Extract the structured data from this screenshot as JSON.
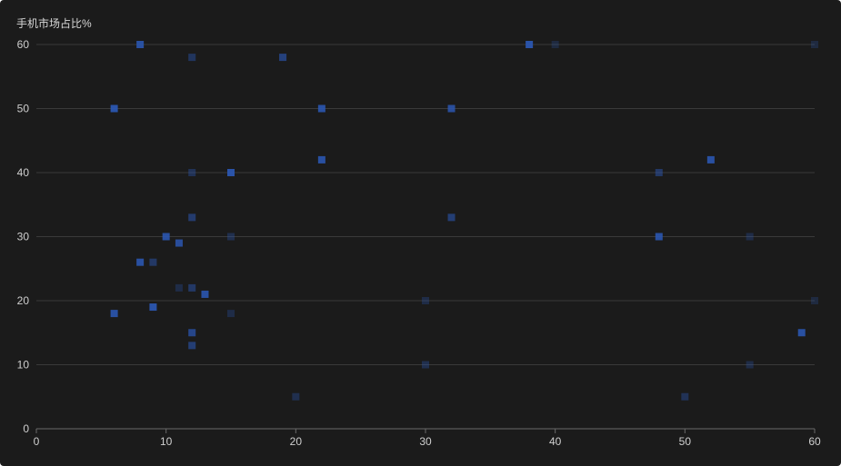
{
  "chart_data": {
    "type": "scatter",
    "title": "",
    "xlabel": "",
    "ylabel": "手机市场占比%",
    "xlim": [
      0,
      60
    ],
    "ylim": [
      0,
      60
    ],
    "x_ticks": [
      "0",
      "10",
      "20",
      "30",
      "40",
      "50",
      "60"
    ],
    "y_ticks": [
      "0",
      "10",
      "20",
      "30",
      "40",
      "50",
      "60"
    ],
    "grid": "horizontal",
    "legend": "none",
    "colors": {
      "background": "#1b1b1b",
      "grid": "#3a3a3a",
      "axis": "#6a6a6a",
      "point": "#2b56b0"
    },
    "series": [
      {
        "points": [
          {
            "x": 6,
            "y": 50,
            "opacity": 0.95
          },
          {
            "x": 6,
            "y": 18,
            "opacity": 0.9
          },
          {
            "x": 8,
            "y": 60,
            "opacity": 0.9
          },
          {
            "x": 8,
            "y": 26,
            "opacity": 0.9
          },
          {
            "x": 9,
            "y": 26,
            "opacity": 0.5
          },
          {
            "x": 9,
            "y": 19,
            "opacity": 0.95
          },
          {
            "x": 10,
            "y": 30,
            "opacity": 0.9
          },
          {
            "x": 11,
            "y": 29,
            "opacity": 0.85
          },
          {
            "x": 11,
            "y": 22,
            "opacity": 0.3
          },
          {
            "x": 12,
            "y": 58,
            "opacity": 0.45
          },
          {
            "x": 12,
            "y": 40,
            "opacity": 0.4
          },
          {
            "x": 12,
            "y": 33,
            "opacity": 0.55
          },
          {
            "x": 12,
            "y": 22,
            "opacity": 0.5
          },
          {
            "x": 12,
            "y": 15,
            "opacity": 0.75
          },
          {
            "x": 12,
            "y": 13,
            "opacity": 0.6
          },
          {
            "x": 13,
            "y": 21,
            "opacity": 0.9
          },
          {
            "x": 15,
            "y": 40,
            "opacity": 0.95
          },
          {
            "x": 15,
            "y": 30,
            "opacity": 0.35
          },
          {
            "x": 15,
            "y": 18,
            "opacity": 0.3
          },
          {
            "x": 19,
            "y": 58,
            "opacity": 0.65
          },
          {
            "x": 20,
            "y": 5,
            "opacity": 0.35
          },
          {
            "x": 22,
            "y": 50,
            "opacity": 0.9
          },
          {
            "x": 22,
            "y": 42,
            "opacity": 0.9
          },
          {
            "x": 30,
            "y": 20,
            "opacity": 0.3
          },
          {
            "x": 30,
            "y": 10,
            "opacity": 0.35
          },
          {
            "x": 32,
            "y": 50,
            "opacity": 0.85
          },
          {
            "x": 32,
            "y": 33,
            "opacity": 0.6
          },
          {
            "x": 38,
            "y": 60,
            "opacity": 0.95
          },
          {
            "x": 40,
            "y": 60,
            "opacity": 0.25
          },
          {
            "x": 48,
            "y": 40,
            "opacity": 0.5
          },
          {
            "x": 48,
            "y": 30,
            "opacity": 0.9
          },
          {
            "x": 50,
            "y": 5,
            "opacity": 0.4
          },
          {
            "x": 52,
            "y": 42,
            "opacity": 0.9
          },
          {
            "x": 55,
            "y": 30,
            "opacity": 0.3
          },
          {
            "x": 55,
            "y": 10,
            "opacity": 0.3
          },
          {
            "x": 59,
            "y": 15,
            "opacity": 0.9
          },
          {
            "x": 60,
            "y": 60,
            "opacity": 0.25
          },
          {
            "x": 60,
            "y": 20,
            "opacity": 0.25
          }
        ]
      }
    ]
  }
}
